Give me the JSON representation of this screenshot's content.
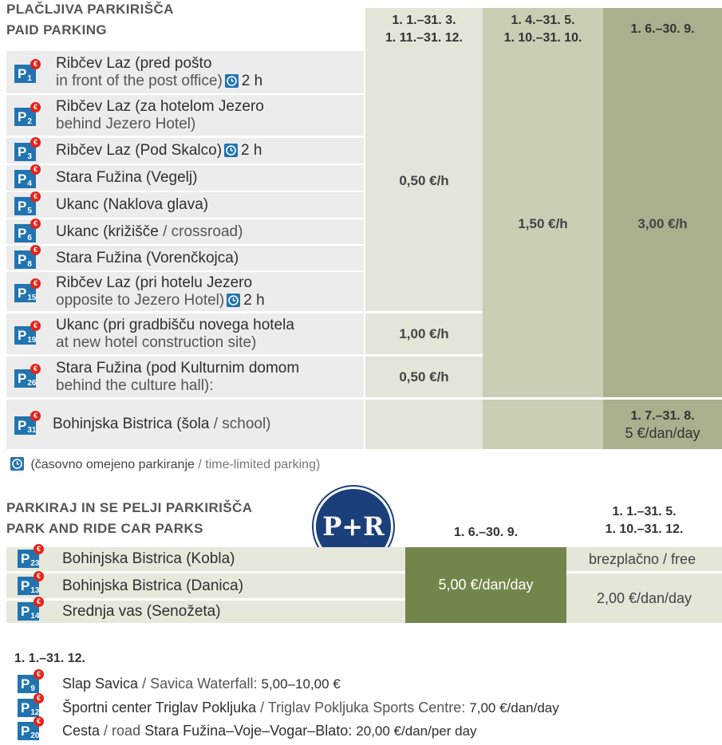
{
  "icon_letter": "P",
  "icon_currency": "€",
  "paid": {
    "title": "PLAČLJIVA PARKIRIŠČA",
    "subtitle": "PAID PARKING",
    "periods": [
      [
        "1. 1.–31. 3.",
        "1. 11.–31. 12."
      ],
      [
        "1. 4.–31. 5.",
        "1. 10.–31. 10."
      ],
      [
        "1. 6.–30. 9."
      ]
    ],
    "rows": [
      {
        "number": "1",
        "name": "Ribčev Laz (pred pošto",
        "english": "in front of the post office)",
        "limit": "2 h"
      },
      {
        "number": "2",
        "name": "Ribčev Laz (za hotelom Jezero",
        "english": "behind Jezero Hotel)"
      },
      {
        "number": "3",
        "name": "Ribčev Laz (Pod Skalco)",
        "limit": "2 h"
      },
      {
        "number": "4",
        "name": "Stara Fužina (Vegelj)"
      },
      {
        "number": "5",
        "name": "Ukanc (Naklova glava)"
      },
      {
        "number": "6",
        "name": "Ukanc (križišče",
        "suffix": "/ crossroad)"
      },
      {
        "number": "8",
        "name": "Stara Fužina (Vorenčkojca)"
      },
      {
        "number": "15",
        "name": "Ribčev Laz (pri hotelu Jezero",
        "english": "opposite to Jezero Hotel)",
        "limit": "2 h"
      },
      {
        "number": "19",
        "name": "Ukanc (pri gradbišču novega hotela",
        "english": "at new hotel construction site)"
      },
      {
        "number": "26",
        "name": "Stara Fužina (pod Kulturnim domom",
        "english": "behind the culture hall):"
      },
      {
        "number": "31",
        "name": "Bohinjska Bistrica (šola",
        "suffix": "/ school)"
      }
    ],
    "prices": [
      "0,50 €/h",
      "1,00 €/h",
      "0,50 €/h",
      "1,50 €/h",
      "3,00 €/h"
    ],
    "school_period": "1. 7.–31. 8.",
    "school_price": "5 €/dan/day"
  },
  "legend": {
    "local": "(časovno omejeno parkiranje",
    "english": "/ time-limited parking)"
  },
  "park_ride": {
    "title": "PARKIRAJ IN SE PELJI PARKIRIŠČA",
    "subtitle": "PARK AND RIDE CAR PARKS",
    "logo": "P+R",
    "summer": "1. 6.–30. 9.",
    "offseason": [
      "1. 1.–31. 5.",
      "1. 10.–31. 12."
    ],
    "rows": [
      {
        "number": "23",
        "name": "Bohinjska Bistrica (Kobla)"
      },
      {
        "number": "13",
        "name": "Bohinjska Bistrica (Danica)"
      },
      {
        "number": "14",
        "name": "Srednja vas (Senožeta)"
      }
    ],
    "summer_price": "5,00 €/dan/day",
    "free": "brezplačno / free",
    "offseason_price": "2,00 €/dan/day"
  },
  "year_round": {
    "period": "1. 1.–31. 12.",
    "rows": [
      {
        "number": "9",
        "name": "Slap Savica",
        "english": "/ Savica Waterfall:",
        "price": "5,00–10,00 €"
      },
      {
        "number": "12",
        "name": "Športni center Triglav Pokljuka",
        "english": "/ Triglav Pokljuka Sports Centre:",
        "price": "7,00 €/dan/day"
      },
      {
        "number": "20",
        "name": "Cesta",
        "english": "/ road",
        "name2": "Stara Fužina–Voje–Vogar–Blato:",
        "price": "20,00 €/dan/per day"
      }
    ]
  }
}
